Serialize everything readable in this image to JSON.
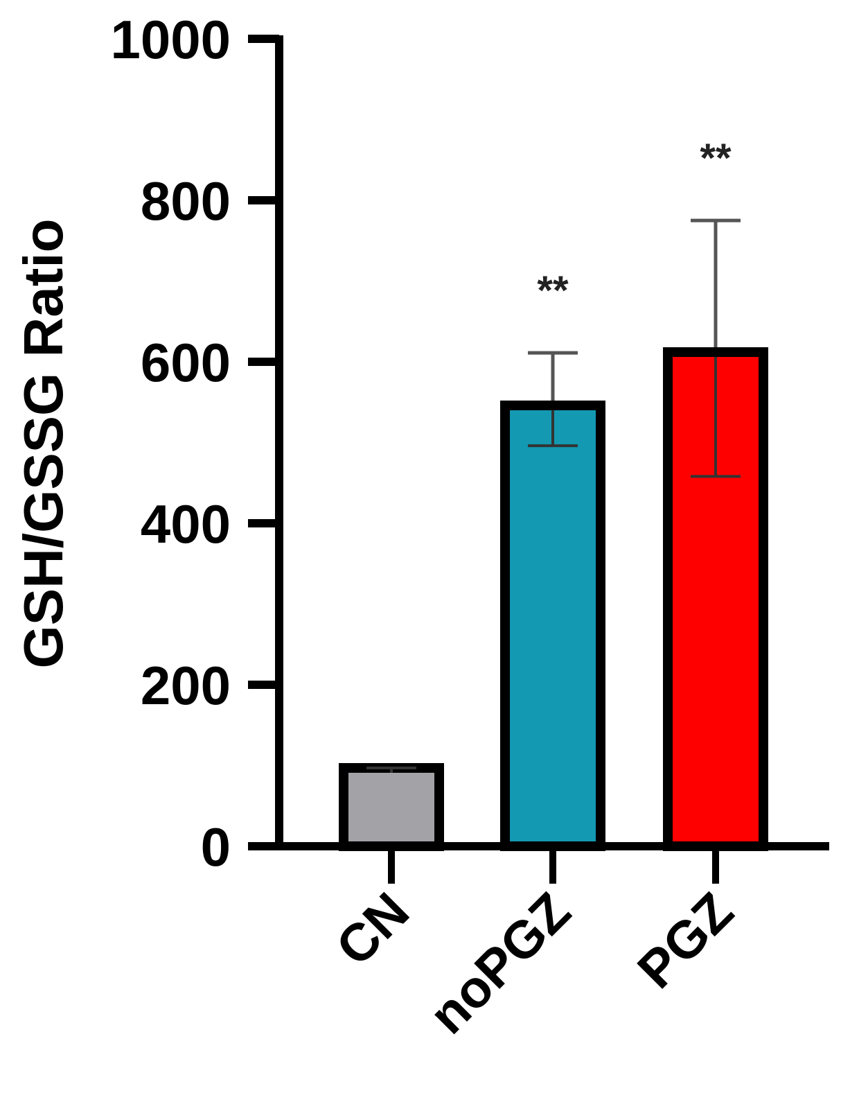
{
  "chart_data": {
    "type": "bar",
    "ylabel": "GSH/GSSG Ratio",
    "ylim": [
      0,
      1000
    ],
    "yticks": [
      0,
      200,
      400,
      600,
      800,
      1000
    ],
    "categories": [
      "CN",
      "noPGZ",
      "PGZ"
    ],
    "values": [
      97,
      546,
      612
    ],
    "error_upper": [
      99,
      611,
      775
    ],
    "error_lower": [
      97,
      496,
      458
    ],
    "significance": [
      "",
      "**",
      "**"
    ],
    "colors": [
      "#a3a3a7",
      "#1399b1",
      "#ff0000"
    ],
    "grid": false,
    "legend": "none"
  }
}
